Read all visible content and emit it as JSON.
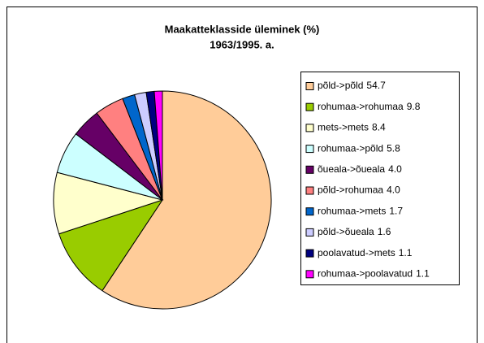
{
  "chart_data": {
    "type": "pie",
    "title": "Maakatteklasside üleminek (%)",
    "subtitle": "1963/1995. a.",
    "categories": [
      "põld->põld",
      "rohumaa->rohumaa",
      "mets->mets",
      "rohumaa->põld",
      "õueala->õueala",
      "põld->rohumaa",
      "rohumaa->mets",
      "põld->õueala",
      "poolavatud->mets",
      "rohumaa->poolavatud"
    ],
    "values": [
      54.7,
      9.8,
      8.4,
      5.8,
      4.0,
      4.0,
      1.7,
      1.6,
      1.1,
      1.1
    ],
    "value_labels": [
      "54.7",
      "9.8",
      "8.4",
      "5.8",
      "4.0",
      "4.0",
      "1.7",
      "1.6",
      "1.1",
      "1.1"
    ],
    "colors": [
      "#FFCC99",
      "#99CC00",
      "#FFFFCC",
      "#CCFFFF",
      "#660066",
      "#FF8080",
      "#0066CC",
      "#CCCCFF",
      "#000080",
      "#FF00FF"
    ],
    "legend": "right"
  }
}
